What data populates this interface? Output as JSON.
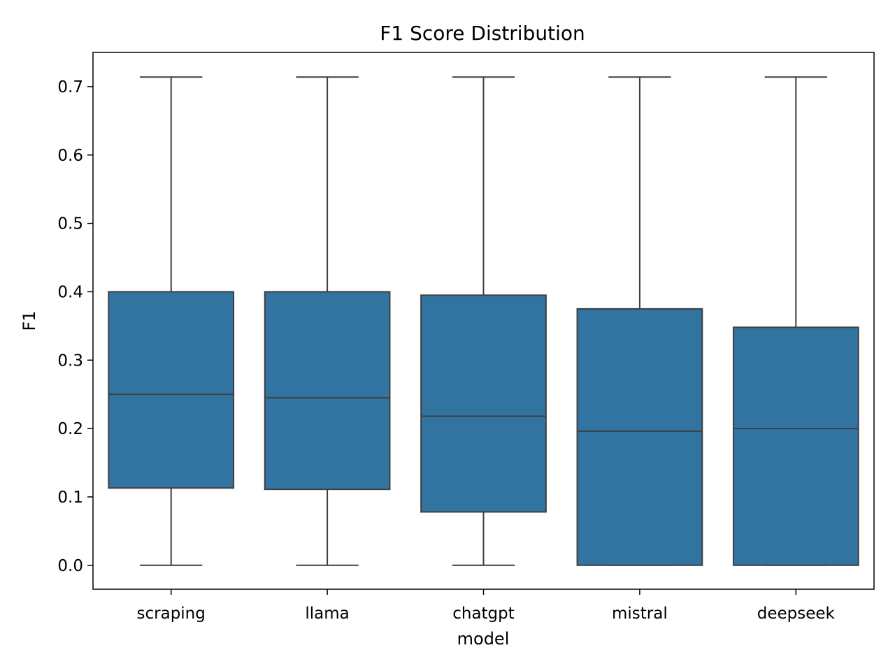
{
  "chart_data": {
    "type": "box",
    "title": "F1 Score Distribution",
    "xlabel": "model",
    "ylabel": "F1",
    "ylim": [
      -0.035,
      0.75
    ],
    "yticks": [
      0.0,
      0.1,
      0.2,
      0.3,
      0.4,
      0.5,
      0.6,
      0.7
    ],
    "ytick_labels": [
      "0.0",
      "0.1",
      "0.2",
      "0.3",
      "0.4",
      "0.5",
      "0.6",
      "0.7"
    ],
    "categories": [
      "scraping",
      "llama",
      "chatgpt",
      "mistral",
      "deepseek"
    ],
    "boxes": [
      {
        "name": "scraping",
        "whisker_low": 0.0,
        "q1": 0.113,
        "median": 0.25,
        "q3": 0.4,
        "whisker_high": 0.714
      },
      {
        "name": "llama",
        "whisker_low": 0.0,
        "q1": 0.111,
        "median": 0.245,
        "q3": 0.4,
        "whisker_high": 0.714
      },
      {
        "name": "chatgpt",
        "whisker_low": 0.0,
        "q1": 0.078,
        "median": 0.218,
        "q3": 0.395,
        "whisker_high": 0.714
      },
      {
        "name": "mistral",
        "whisker_low": 0.0,
        "q1": 0.0,
        "median": 0.196,
        "q3": 0.375,
        "whisker_high": 0.714
      },
      {
        "name": "deepseek",
        "whisker_low": 0.0,
        "q1": 0.0,
        "median": 0.2,
        "q3": 0.348,
        "whisker_high": 0.714
      }
    ],
    "box_color": "#3274a1",
    "line_color": "#3f3f3f",
    "grid": false,
    "legend": "none"
  }
}
